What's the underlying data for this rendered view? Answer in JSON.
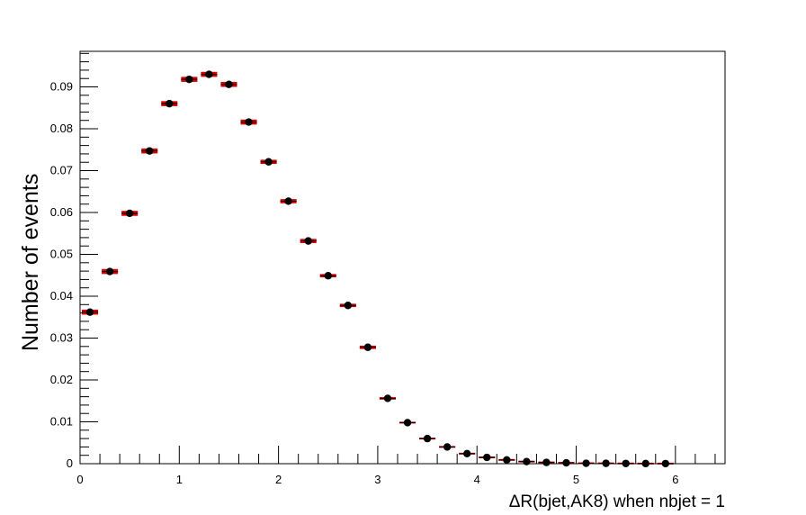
{
  "chart_data": {
    "type": "scatter",
    "title": "",
    "xlabel": "ΔR(bjet,AK8) when nbjet = 1",
    "ylabel": "Number of events",
    "xlim": [
      0,
      6.5
    ],
    "ylim": [
      0,
      0.0985
    ],
    "x_ticks": [
      "0",
      "1",
      "2",
      "3",
      "4",
      "5",
      "6"
    ],
    "y_ticks": [
      "0",
      "0.01",
      "0.02",
      "0.03",
      "0.04",
      "0.05",
      "0.06",
      "0.07",
      "0.08",
      "0.09"
    ],
    "grid": false,
    "legend": "none",
    "bin_width": 0.2,
    "series": [
      {
        "x": [
          0.1,
          0.3,
          0.5,
          0.7,
          0.9,
          1.1,
          1.3,
          1.5,
          1.7,
          1.9,
          2.1,
          2.3,
          2.5,
          2.7,
          2.9,
          3.1,
          3.3,
          3.5,
          3.7,
          3.9,
          4.1,
          4.3,
          4.5,
          4.7,
          4.9,
          5.1,
          5.3,
          5.5,
          5.7,
          5.9
        ],
        "values": [
          0.0362,
          0.0459,
          0.0598,
          0.0747,
          0.086,
          0.0918,
          0.093,
          0.0906,
          0.0816,
          0.0721,
          0.0627,
          0.0532,
          0.0449,
          0.0378,
          0.0278,
          0.0156,
          0.0098,
          0.006,
          0.004,
          0.0024,
          0.0015,
          0.0009,
          0.0005,
          0.0003,
          0.0002,
          0.0001,
          8e-05,
          5e-05,
          3e-05,
          2e-05
        ],
        "band_halfwidth": [
          0.0006,
          0.0006,
          0.0006,
          0.0006,
          0.0006,
          0.0006,
          0.0006,
          0.0006,
          0.0006,
          0.0005,
          0.0005,
          0.0005,
          0.0004,
          0.0004,
          0.0004,
          0.0003,
          0.0002,
          0.0002,
          0.0001,
          0.0001,
          0.0001,
          0.0001,
          0.0001,
          0.0001,
          0.0001,
          0.0001,
          0.0001,
          0.0001,
          0.0001,
          0.0001
        ],
        "marker_color": "#000000",
        "band_color": "#d40000"
      }
    ]
  }
}
